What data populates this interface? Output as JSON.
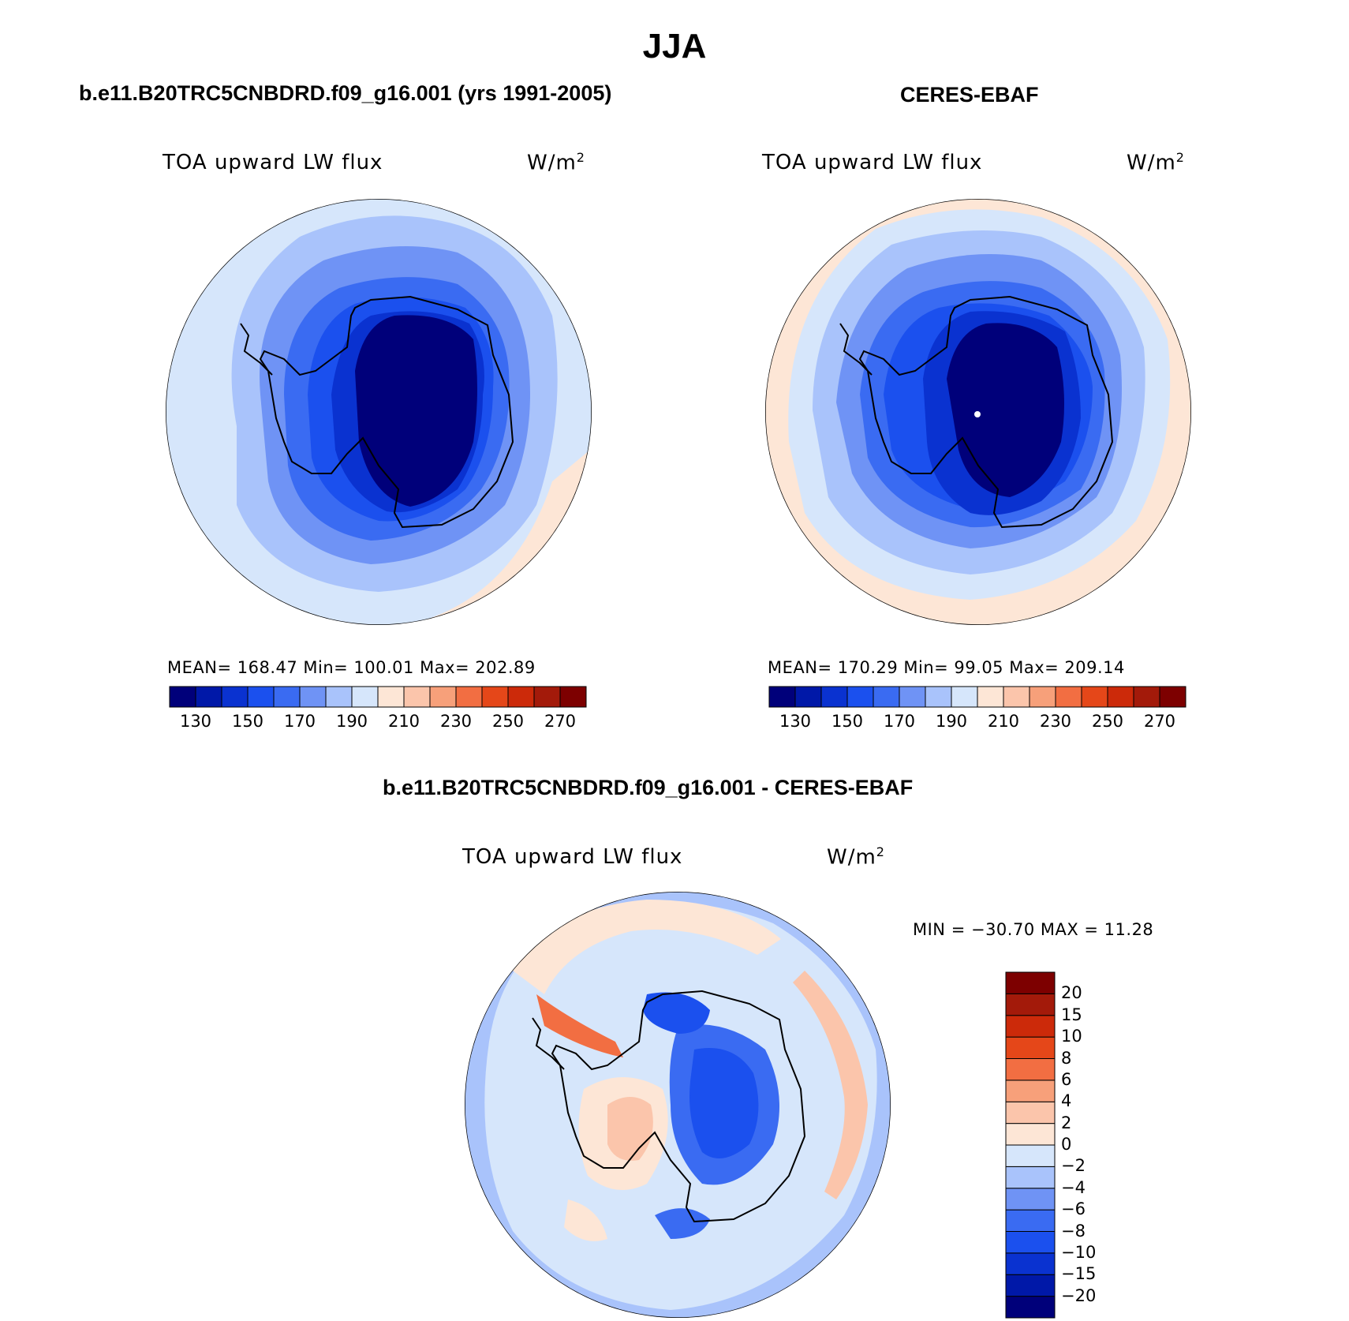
{
  "figure": {
    "title": "JJA"
  },
  "panels": [
    {
      "id": "model",
      "title": "b.e11.B20TRC5CNBDRD.f09_g16.001 (yrs 1991-2005)",
      "variable": "TOA upward LW flux",
      "units_base": "W/m",
      "units_exp": "2",
      "stats": "MEAN=  168.47   Min=  100.01   Max=  202.89"
    },
    {
      "id": "obs",
      "title": "CERES-EBAF",
      "variable": "TOA upward LW flux",
      "units_base": "W/m",
      "units_exp": "2",
      "stats": "MEAN=  170.29   Min=    99.05   Max=  209.14"
    },
    {
      "id": "diff",
      "title": "b.e11.B20TRC5CNBDRD.f09_g16.001 - CERES-EBAF",
      "variable": "TOA upward LW flux",
      "units_base": "W/m",
      "units_exp": "2",
      "stats": "MIN = −30.70 MAX =   11.28"
    }
  ],
  "colorbar_main": {
    "colors": [
      "#00007a",
      "#0018a8",
      "#0a32d0",
      "#1b50ee",
      "#3a6bf2",
      "#6f93f5",
      "#a9c3fb",
      "#d6e6fb",
      "#fde6d6",
      "#fbc5ab",
      "#f7a07a",
      "#f26e42",
      "#e54719",
      "#cc2a0a",
      "#a31a0a",
      "#7d0000"
    ],
    "tick_labels": [
      "130",
      "150",
      "170",
      "190",
      "210",
      "230",
      "250",
      "270"
    ]
  },
  "colorbar_diff": {
    "colors": [
      "#00007a",
      "#0018a8",
      "#0a32d0",
      "#1b50ee",
      "#3a6bf2",
      "#6f93f5",
      "#a9c3fb",
      "#d6e6fb",
      "#fde6d6",
      "#fbc5ab",
      "#f7a07a",
      "#f26e42",
      "#e54719",
      "#cc2a0a",
      "#a31a0a",
      "#7d0000"
    ],
    "tick_labels": [
      "−20",
      "−15",
      "−10",
      "−8",
      "−6",
      "−4",
      "−2",
      "0",
      "2",
      "4",
      "6",
      "8",
      "10",
      "15",
      "20"
    ]
  },
  "colors": {
    "coast": "#000000",
    "outline": "#000000"
  }
}
